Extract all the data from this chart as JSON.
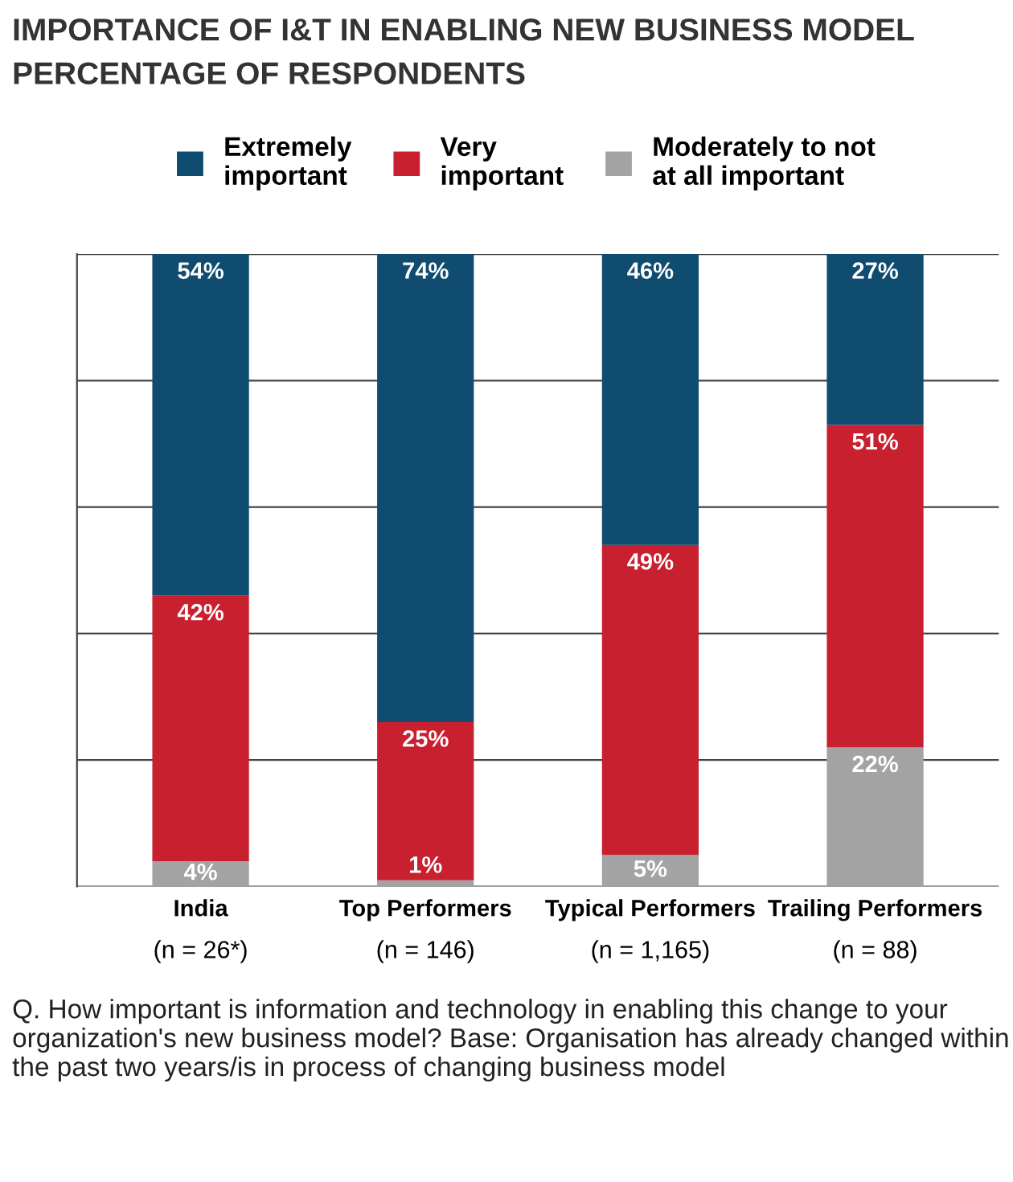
{
  "chart_data": {
    "type": "bar",
    "stacked": true,
    "title": "IMPORTANCE OF I&T IN ENABLING NEW BUSINESS MODEL",
    "subtitle": "PERCENTAGE OF RESPONDENTS",
    "categories": [
      "India\n(n = 26*)",
      "Top Performers\n(n = 146)",
      "Typical Performers\n(n = 1,165)",
      "Trailing Performers\n(n = 88)"
    ],
    "series": [
      {
        "name": "Moderately to not\nat all important",
        "color": "#a3a3a3",
        "values": [
          4,
          1,
          5,
          22
        ],
        "value_labels": [
          "4%",
          "1%",
          "5%",
          "22%"
        ]
      },
      {
        "name": "Very\nimportant",
        "color": "#c8202f",
        "values": [
          42,
          25,
          49,
          51
        ],
        "value_labels": [
          "42%",
          "25%",
          "49%",
          "51%"
        ]
      },
      {
        "name": "Extremely\nimportant",
        "color": "#0f4c6f",
        "values": [
          54,
          74,
          46,
          27
        ],
        "value_labels": [
          "54%",
          "74%",
          "46%",
          "27%"
        ]
      }
    ],
    "ylim": [
      0,
      100
    ],
    "yticks": [
      {
        "value": 0,
        "label": null
      },
      {
        "value": 20,
        "label": null
      },
      {
        "value": 40,
        "label": null
      },
      {
        "value": 60,
        "label": null
      },
      {
        "value": 80,
        "label": null
      },
      {
        "value": 100,
        "label": null
      }
    ],
    "tick_labels": "x",
    "grid": "y",
    "legend": "top",
    "annotations": [
      "Q. How important is information and technology in enabling this change to your organization's new business model? Base: Organisation has already changed within the past two years/is in process of changing business model"
    ]
  }
}
